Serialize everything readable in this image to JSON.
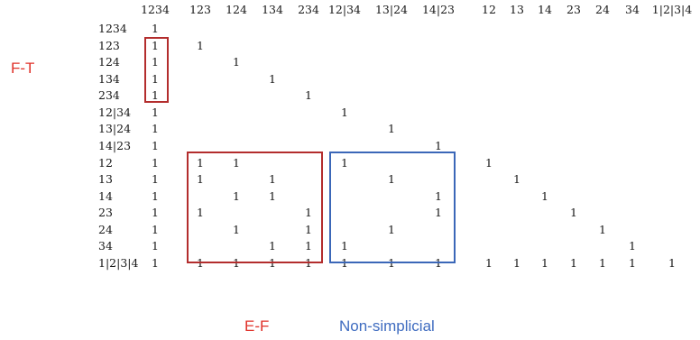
{
  "matrix": {
    "columns": [
      "1234",
      "123",
      "124",
      "134",
      "234",
      "12|34",
      "13|24",
      "14|23",
      "12",
      "13",
      "14",
      "23",
      "24",
      "34",
      "1|2|3|4"
    ],
    "rows": [
      {
        "label": "1234",
        "ones": [
          "1234"
        ]
      },
      {
        "label": "123",
        "ones": [
          "1234",
          "123"
        ]
      },
      {
        "label": "124",
        "ones": [
          "1234",
          "124"
        ]
      },
      {
        "label": "134",
        "ones": [
          "1234",
          "134"
        ]
      },
      {
        "label": "234",
        "ones": [
          "1234",
          "234"
        ]
      },
      {
        "label": "12|34",
        "ones": [
          "1234",
          "12|34"
        ]
      },
      {
        "label": "13|24",
        "ones": [
          "1234",
          "13|24"
        ]
      },
      {
        "label": "14|23",
        "ones": [
          "1234",
          "14|23"
        ]
      },
      {
        "label": "12",
        "ones": [
          "1234",
          "123",
          "124",
          "12|34",
          "12"
        ]
      },
      {
        "label": "13",
        "ones": [
          "1234",
          "123",
          "134",
          "13|24",
          "13"
        ]
      },
      {
        "label": "14",
        "ones": [
          "1234",
          "124",
          "134",
          "14|23",
          "14"
        ]
      },
      {
        "label": "23",
        "ones": [
          "1234",
          "123",
          "234",
          "14|23",
          "23"
        ]
      },
      {
        "label": "24",
        "ones": [
          "1234",
          "124",
          "234",
          "13|24",
          "24"
        ]
      },
      {
        "label": "34",
        "ones": [
          "1234",
          "134",
          "234",
          "12|34",
          "34"
        ]
      },
      {
        "label": "1|2|3|4",
        "ones": [
          "1234",
          "123",
          "124",
          "134",
          "234",
          "12|34",
          "13|24",
          "14|23",
          "12",
          "13",
          "14",
          "23",
          "24",
          "34",
          "1|2|3|4"
        ]
      }
    ],
    "cell_value": "1"
  },
  "annotations": {
    "ft_label": "F-T",
    "ef_label": "E-F",
    "nonsimplicial_label": "Non-simplicial"
  },
  "colors": {
    "red": "#b32d2d",
    "red_text": "#e0332b",
    "blue": "#3b67b8",
    "blue_text": "#3f6cc0"
  }
}
